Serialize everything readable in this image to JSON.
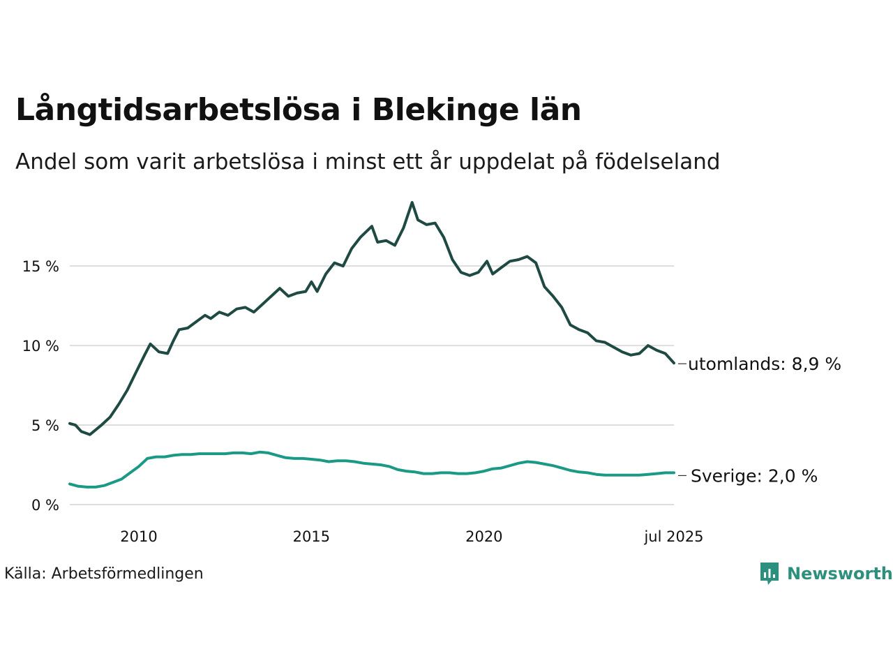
{
  "title": "Långtidsarbetslösa i Blekinge län",
  "subtitle": "Andel som varit arbetslösa i minst ett år uppdelat på födelseland",
  "source": "Källa: Arbetsförmedlingen",
  "brand": {
    "name": "Newsworthy",
    "color": "#2d8f7d",
    "icon": "newsworthy-chart-icon"
  },
  "chart_data": {
    "type": "line",
    "title": "Långtidsarbetslösa i Blekinge län",
    "subtitle": "Andel som varit arbetslösa i minst ett år uppdelat på födelseland",
    "x_range": [
      "2008-01",
      "2025-07"
    ],
    "ylim": [
      0,
      19
    ],
    "y_ticks": [
      0,
      5,
      10,
      15
    ],
    "y_tick_labels": [
      "0 %",
      "5 %",
      "10 %",
      "15 %"
    ],
    "x_ticks": [
      "2010-01",
      "2015-01",
      "2020-01",
      "2025-07"
    ],
    "x_tick_labels": [
      "2010",
      "2015",
      "2020",
      "jul 2025"
    ],
    "grid": "horizontal",
    "series": [
      {
        "name": "utomlands",
        "label": "utomlands: 8,9 %",
        "color": "#1f4a43",
        "points": [
          [
            "2008-01",
            5.1
          ],
          [
            "2008-03",
            5.0
          ],
          [
            "2008-05",
            4.6
          ],
          [
            "2008-08",
            4.4
          ],
          [
            "2008-10",
            4.7
          ],
          [
            "2008-12",
            5.0
          ],
          [
            "2009-03",
            5.5
          ],
          [
            "2009-06",
            6.3
          ],
          [
            "2009-09",
            7.2
          ],
          [
            "2009-12",
            8.3
          ],
          [
            "2010-03",
            9.4
          ],
          [
            "2010-05",
            10.1
          ],
          [
            "2010-08",
            9.6
          ],
          [
            "2010-11",
            9.5
          ],
          [
            "2011-01",
            10.3
          ],
          [
            "2011-03",
            11.0
          ],
          [
            "2011-06",
            11.1
          ],
          [
            "2011-09",
            11.5
          ],
          [
            "2011-12",
            11.9
          ],
          [
            "2012-02",
            11.7
          ],
          [
            "2012-05",
            12.1
          ],
          [
            "2012-08",
            11.9
          ],
          [
            "2012-11",
            12.3
          ],
          [
            "2013-02",
            12.4
          ],
          [
            "2013-05",
            12.1
          ],
          [
            "2013-08",
            12.6
          ],
          [
            "2013-11",
            13.1
          ],
          [
            "2014-02",
            13.6
          ],
          [
            "2014-05",
            13.1
          ],
          [
            "2014-08",
            13.3
          ],
          [
            "2014-11",
            13.4
          ],
          [
            "2015-01",
            14.0
          ],
          [
            "2015-03",
            13.4
          ],
          [
            "2015-06",
            14.5
          ],
          [
            "2015-09",
            15.2
          ],
          [
            "2015-12",
            15.0
          ],
          [
            "2016-03",
            16.1
          ],
          [
            "2016-06",
            16.8
          ],
          [
            "2016-10",
            17.5
          ],
          [
            "2016-12",
            16.5
          ],
          [
            "2017-03",
            16.6
          ],
          [
            "2017-06",
            16.3
          ],
          [
            "2017-09",
            17.4
          ],
          [
            "2017-12",
            19.0
          ],
          [
            "2018-02",
            17.9
          ],
          [
            "2018-05",
            17.6
          ],
          [
            "2018-08",
            17.7
          ],
          [
            "2018-11",
            16.8
          ],
          [
            "2019-02",
            15.4
          ],
          [
            "2019-05",
            14.6
          ],
          [
            "2019-08",
            14.4
          ],
          [
            "2019-11",
            14.6
          ],
          [
            "2020-02",
            15.3
          ],
          [
            "2020-04",
            14.5
          ],
          [
            "2020-07",
            14.9
          ],
          [
            "2020-10",
            15.3
          ],
          [
            "2021-01",
            15.4
          ],
          [
            "2021-04",
            15.6
          ],
          [
            "2021-07",
            15.2
          ],
          [
            "2021-10",
            13.7
          ],
          [
            "2022-01",
            13.1
          ],
          [
            "2022-04",
            12.4
          ],
          [
            "2022-07",
            11.3
          ],
          [
            "2022-10",
            11.0
          ],
          [
            "2023-01",
            10.8
          ],
          [
            "2023-04",
            10.3
          ],
          [
            "2023-07",
            10.2
          ],
          [
            "2023-10",
            9.9
          ],
          [
            "2024-01",
            9.6
          ],
          [
            "2024-04",
            9.4
          ],
          [
            "2024-07",
            9.5
          ],
          [
            "2024-10",
            10.0
          ],
          [
            "2025-01",
            9.7
          ],
          [
            "2025-04",
            9.5
          ],
          [
            "2025-07",
            8.9
          ]
        ]
      },
      {
        "name": "Sverige",
        "label": "Sverige: 2,0 %",
        "color": "#1a9a86",
        "points": [
          [
            "2008-01",
            1.3
          ],
          [
            "2008-04",
            1.15
          ],
          [
            "2008-07",
            1.1
          ],
          [
            "2008-10",
            1.1
          ],
          [
            "2009-01",
            1.2
          ],
          [
            "2009-04",
            1.4
          ],
          [
            "2009-07",
            1.6
          ],
          [
            "2009-10",
            2.0
          ],
          [
            "2010-01",
            2.4
          ],
          [
            "2010-04",
            2.9
          ],
          [
            "2010-07",
            3.0
          ],
          [
            "2010-10",
            3.0
          ],
          [
            "2011-01",
            3.1
          ],
          [
            "2011-04",
            3.15
          ],
          [
            "2011-07",
            3.15
          ],
          [
            "2011-10",
            3.2
          ],
          [
            "2012-01",
            3.2
          ],
          [
            "2012-04",
            3.2
          ],
          [
            "2012-07",
            3.2
          ],
          [
            "2012-10",
            3.25
          ],
          [
            "2013-01",
            3.25
          ],
          [
            "2013-04",
            3.2
          ],
          [
            "2013-07",
            3.3
          ],
          [
            "2013-10",
            3.25
          ],
          [
            "2014-01",
            3.1
          ],
          [
            "2014-04",
            2.95
          ],
          [
            "2014-07",
            2.9
          ],
          [
            "2014-10",
            2.9
          ],
          [
            "2015-01",
            2.85
          ],
          [
            "2015-04",
            2.8
          ],
          [
            "2015-07",
            2.7
          ],
          [
            "2015-10",
            2.75
          ],
          [
            "2016-01",
            2.75
          ],
          [
            "2016-04",
            2.7
          ],
          [
            "2016-07",
            2.6
          ],
          [
            "2016-10",
            2.55
          ],
          [
            "2017-01",
            2.5
          ],
          [
            "2017-04",
            2.4
          ],
          [
            "2017-07",
            2.2
          ],
          [
            "2017-10",
            2.1
          ],
          [
            "2018-01",
            2.05
          ],
          [
            "2018-04",
            1.95
          ],
          [
            "2018-07",
            1.95
          ],
          [
            "2018-10",
            2.0
          ],
          [
            "2019-01",
            2.0
          ],
          [
            "2019-04",
            1.95
          ],
          [
            "2019-07",
            1.95
          ],
          [
            "2019-10",
            2.0
          ],
          [
            "2020-01",
            2.1
          ],
          [
            "2020-04",
            2.25
          ],
          [
            "2020-07",
            2.3
          ],
          [
            "2020-10",
            2.45
          ],
          [
            "2021-01",
            2.6
          ],
          [
            "2021-04",
            2.7
          ],
          [
            "2021-07",
            2.65
          ],
          [
            "2021-10",
            2.55
          ],
          [
            "2022-01",
            2.45
          ],
          [
            "2022-04",
            2.3
          ],
          [
            "2022-07",
            2.15
          ],
          [
            "2022-10",
            2.05
          ],
          [
            "2023-01",
            2.0
          ],
          [
            "2023-04",
            1.9
          ],
          [
            "2023-07",
            1.85
          ],
          [
            "2023-10",
            1.85
          ],
          [
            "2024-01",
            1.85
          ],
          [
            "2024-04",
            1.85
          ],
          [
            "2024-07",
            1.85
          ],
          [
            "2024-10",
            1.9
          ],
          [
            "2025-01",
            1.95
          ],
          [
            "2025-04",
            2.0
          ],
          [
            "2025-07",
            2.0
          ]
        ]
      }
    ]
  }
}
